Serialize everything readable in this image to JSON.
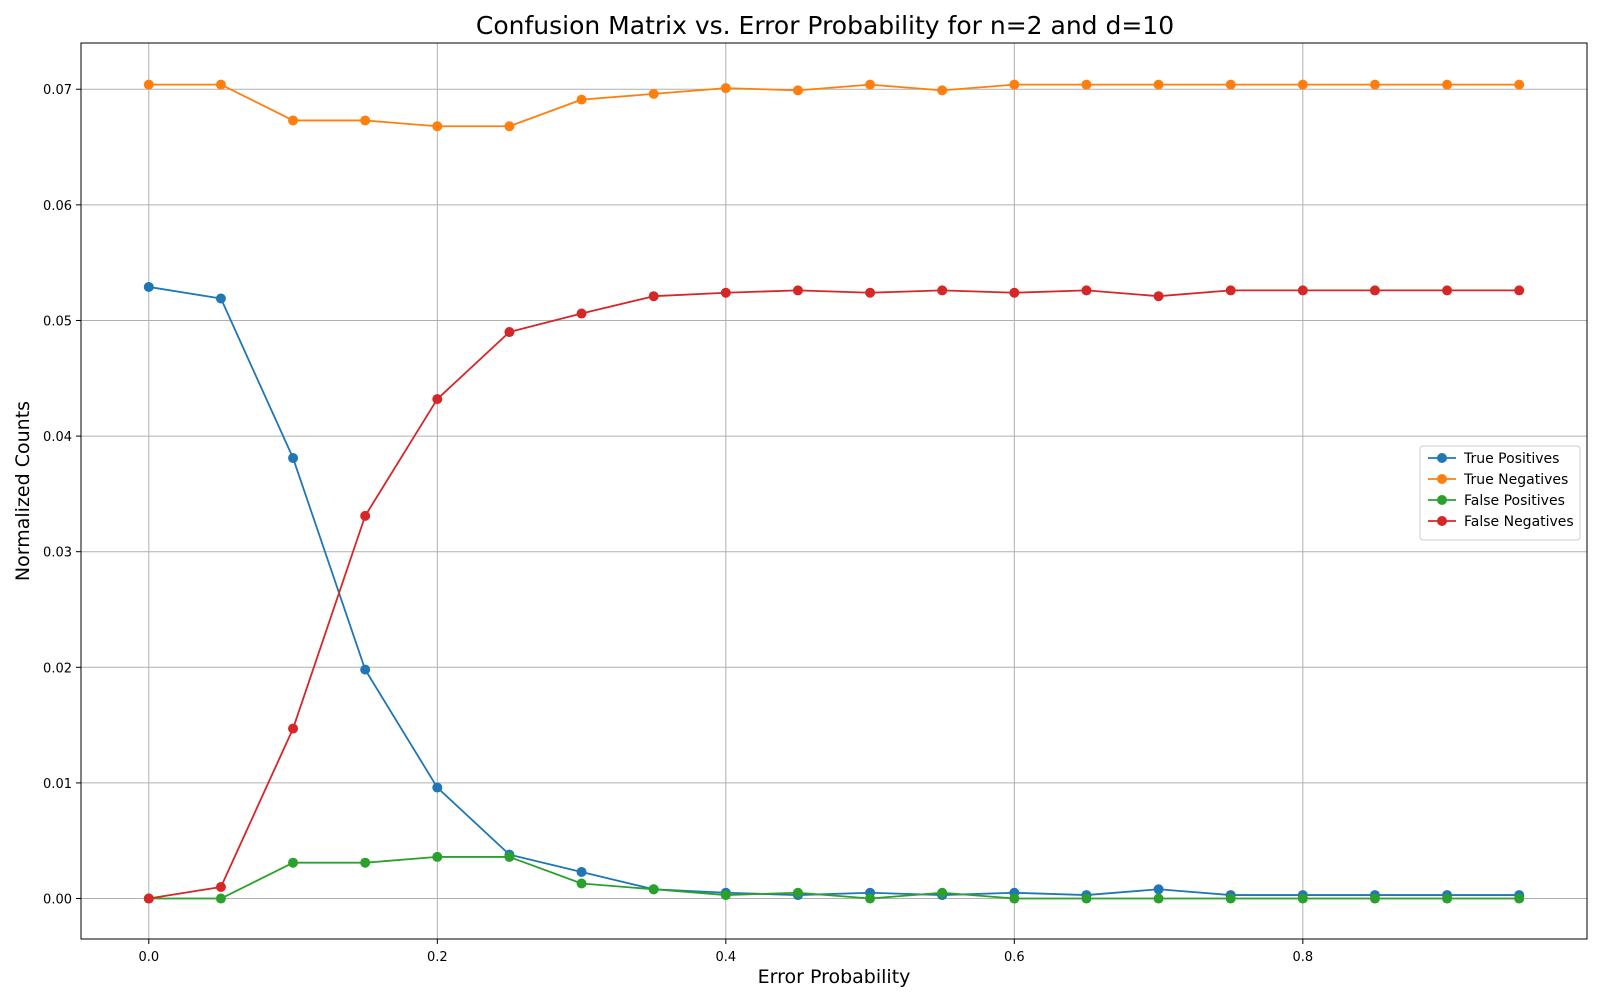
{
  "chart_data": {
    "type": "line",
    "title": "Confusion Matrix vs. Error Probability for n=2 and d=10",
    "xlabel": "Error Probability",
    "ylabel": "Normalized Counts",
    "xlim": [
      -0.047,
      0.997
    ],
    "ylim": [
      -0.0035,
      0.074
    ],
    "xticks": [
      0.0,
      0.2,
      0.4,
      0.6,
      0.8
    ],
    "xtick_labels": [
      "0.0",
      "0.2",
      "0.4",
      "0.6",
      "0.8"
    ],
    "yticks": [
      0.0,
      0.01,
      0.02,
      0.03,
      0.04,
      0.05,
      0.06,
      0.07
    ],
    "ytick_labels": [
      "0.00",
      "0.01",
      "0.02",
      "0.03",
      "0.04",
      "0.05",
      "0.06",
      "0.07"
    ],
    "grid": true,
    "legend_position": "center-right",
    "x": [
      0.0,
      0.05,
      0.1,
      0.15,
      0.2,
      0.25,
      0.3,
      0.35,
      0.4,
      0.45,
      0.5,
      0.55,
      0.6,
      0.65,
      0.7,
      0.75,
      0.8,
      0.85,
      0.9,
      0.95
    ],
    "series": [
      {
        "name": "True Positives",
        "color": "#1f77b4",
        "values": [
          0.0529,
          0.0519,
          0.0381,
          0.0198,
          0.0096,
          0.0038,
          0.0023,
          0.0008,
          0.0005,
          0.0003,
          0.0005,
          0.0003,
          0.0005,
          0.0003,
          0.0008,
          0.0003,
          0.0003,
          0.0003,
          0.0003,
          0.0003
        ]
      },
      {
        "name": "True Negatives",
        "color": "#ff7f0e",
        "values": [
          0.0704,
          0.0704,
          0.0673,
          0.0673,
          0.0668,
          0.0668,
          0.0691,
          0.0696,
          0.0701,
          0.0699,
          0.0704,
          0.0699,
          0.0704,
          0.0704,
          0.0704,
          0.0704,
          0.0704,
          0.0704,
          0.0704,
          0.0704
        ]
      },
      {
        "name": "False Positives",
        "color": "#2ca02c",
        "values": [
          0.0,
          0.0,
          0.0031,
          0.0031,
          0.0036,
          0.0036,
          0.0013,
          0.0008,
          0.0003,
          0.0005,
          0.0,
          0.0005,
          0.0,
          0.0,
          0.0,
          0.0,
          0.0,
          0.0,
          0.0,
          0.0
        ]
      },
      {
        "name": "False Negatives",
        "color": "#d62728",
        "values": [
          0.0,
          0.001,
          0.0147,
          0.0331,
          0.0432,
          0.049,
          0.0506,
          0.0521,
          0.0524,
          0.0526,
          0.0524,
          0.0526,
          0.0524,
          0.0526,
          0.0521,
          0.0526,
          0.0526,
          0.0526,
          0.0526,
          0.0526
        ]
      }
    ]
  }
}
